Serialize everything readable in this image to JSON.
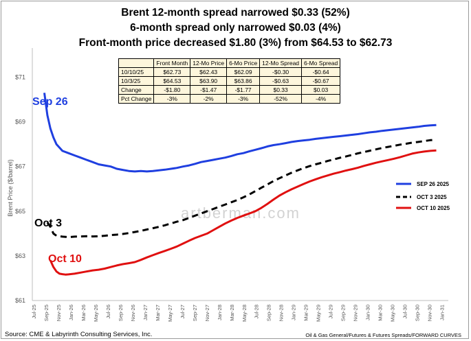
{
  "titles": {
    "line1": "Brent 12-month spread narrowed $0.33 (52%)",
    "line2": "6-month spread only narrowed $0.03 (4%)",
    "line3": "Front-month price decreased $1.80 (3%) from $64.53 to $62.73"
  },
  "table": {
    "headers": [
      "",
      "Front Month",
      "12-Mo Price",
      "6-Mo Price",
      "12-Mo Spread",
      "6-Mo Spread"
    ],
    "rows": [
      [
        "10/10/25",
        "$62.73",
        "$62.43",
        "$62.09",
        "-$0.30",
        "-$0.64"
      ],
      [
        "10/3/25",
        "$64.53",
        "$63.90",
        "$63.86",
        "-$0.63",
        "-$0.67"
      ],
      [
        "Change",
        "-$1.80",
        "-$1.47",
        "-$1.77",
        "$0.33",
        "$0.03"
      ],
      [
        "Pct Change",
        "-3%",
        "-2%",
        "-3%",
        "-52%",
        "-4%"
      ]
    ]
  },
  "footer": {
    "source": "Source: CME & Labyrinth Consulting Services, Inc.",
    "path": "Oil & Gas General/Futures & Futures Spreads/FORWARD CURVES"
  },
  "watermark": "artberman.com",
  "chart_data": {
    "type": "line",
    "ylabel": "Brent Price ($/barrel)",
    "xlabel": "",
    "ylim": [
      61,
      72
    ],
    "yticks": [
      61,
      63,
      65,
      67,
      69,
      71
    ],
    "ytick_labels": [
      "$61",
      "$63",
      "$65",
      "$67",
      "$69",
      "$71"
    ],
    "x_labels": [
      "Jul-25",
      "Sep-25",
      "Nov-25",
      "Jan-26",
      "Mar-26",
      "May-26",
      "Jul-26",
      "Sep-26",
      "Nov-26",
      "Jan-27",
      "Mar-27",
      "May-27",
      "Jul-27",
      "Sep-27",
      "Nov-27",
      "Jan-28",
      "Mar-28",
      "May-28",
      "Jul-28",
      "Sep-28",
      "Nov-28",
      "Jan-29",
      "Mar-29",
      "May-29",
      "Jul-29",
      "Sep-29",
      "Nov-29",
      "Jan-30",
      "Mar-30",
      "May-30",
      "Jul-30",
      "Sep-30",
      "Nov-30",
      "Jan-31"
    ],
    "series": [
      {
        "name": "SEP 26 2025",
        "label": "Sep 26",
        "color": "#1f3fe0",
        "dash": "solid",
        "x": [
          4,
          5,
          6,
          7,
          8,
          9,
          10,
          12,
          14,
          16,
          18,
          20,
          22,
          24,
          26,
          28,
          30,
          32,
          34,
          36,
          38,
          40,
          42,
          44,
          46,
          48,
          50,
          52,
          54,
          56,
          58,
          60,
          62,
          64,
          66,
          68,
          70,
          72,
          74,
          76,
          78,
          80,
          82,
          84,
          86,
          88,
          90,
          92,
          94,
          96,
          98,
          100,
          102,
          104,
          106,
          108,
          110,
          112,
          114,
          116,
          118,
          120,
          122,
          124,
          126,
          128,
          130,
          132,
          134
        ],
        "values": [
          70.3,
          69.3,
          68.7,
          68.3,
          68.0,
          67.85,
          67.7,
          67.6,
          67.5,
          67.4,
          67.3,
          67.2,
          67.1,
          67.05,
          67.0,
          66.9,
          66.85,
          66.8,
          66.78,
          66.8,
          66.78,
          66.8,
          66.83,
          66.86,
          66.9,
          66.94,
          67.0,
          67.05,
          67.12,
          67.2,
          67.25,
          67.3,
          67.35,
          67.4,
          67.47,
          67.55,
          67.6,
          67.68,
          67.75,
          67.82,
          67.9,
          67.96,
          68.0,
          68.05,
          68.1,
          68.14,
          68.17,
          68.2,
          68.24,
          68.27,
          68.3,
          68.33,
          68.36,
          68.39,
          68.42,
          68.45,
          68.49,
          68.53,
          68.56,
          68.6,
          68.63,
          68.66,
          68.69,
          68.72,
          68.75,
          68.78,
          68.82,
          68.84,
          68.86
        ]
      },
      {
        "name": "OCT 3 2025",
        "label": "Oct 3",
        "color": "#000000",
        "dash": "dashed",
        "x": [
          5,
          6,
          7,
          8,
          9,
          10,
          12,
          14,
          16,
          18,
          20,
          22,
          24,
          26,
          28,
          30,
          32,
          34,
          36,
          38,
          40,
          42,
          44,
          46,
          48,
          50,
          52,
          54,
          56,
          58,
          60,
          62,
          64,
          66,
          68,
          70,
          72,
          74,
          76,
          78,
          80,
          82,
          84,
          86,
          88,
          90,
          92,
          94,
          96,
          98,
          100,
          102,
          104,
          106,
          108,
          110,
          112,
          114,
          116,
          118,
          120,
          122,
          124,
          126,
          128,
          130,
          132,
          134
        ],
        "values": [
          64.5,
          64.3,
          64.0,
          63.9,
          63.88,
          63.86,
          63.84,
          63.86,
          63.87,
          63.88,
          63.87,
          63.88,
          63.9,
          63.93,
          63.95,
          63.98,
          64.02,
          64.07,
          64.12,
          64.18,
          64.24,
          64.3,
          64.37,
          64.45,
          64.53,
          64.6,
          64.7,
          64.8,
          64.9,
          65.0,
          65.1,
          65.2,
          65.3,
          65.4,
          65.5,
          65.62,
          65.75,
          65.9,
          66.05,
          66.2,
          66.35,
          66.48,
          66.6,
          66.72,
          66.83,
          66.93,
          67.02,
          67.1,
          67.17,
          67.25,
          67.32,
          67.39,
          67.45,
          67.52,
          67.59,
          67.65,
          67.71,
          67.77,
          67.83,
          67.88,
          67.93,
          67.98,
          68.02,
          68.07,
          68.1,
          68.14,
          68.18,
          68.2
        ]
      },
      {
        "name": "OCT 10 2025",
        "label": "Oct 10",
        "color": "#e01010",
        "dash": "solid",
        "x": [
          6,
          7,
          8,
          9,
          10,
          11,
          12,
          14,
          16,
          18,
          20,
          22,
          24,
          26,
          28,
          30,
          32,
          34,
          36,
          38,
          40,
          42,
          44,
          46,
          48,
          50,
          52,
          54,
          56,
          58,
          60,
          62,
          64,
          66,
          68,
          70,
          72,
          74,
          76,
          78,
          80,
          82,
          84,
          86,
          88,
          90,
          92,
          94,
          96,
          98,
          100,
          102,
          104,
          106,
          108,
          110,
          112,
          114,
          116,
          118,
          120,
          122,
          124,
          126,
          128,
          130,
          132,
          134
        ],
        "values": [
          62.8,
          62.5,
          62.3,
          62.2,
          62.18,
          62.16,
          62.17,
          62.2,
          62.25,
          62.3,
          62.35,
          62.38,
          62.43,
          62.5,
          62.57,
          62.63,
          62.67,
          62.72,
          62.82,
          62.93,
          63.03,
          63.13,
          63.22,
          63.32,
          63.42,
          63.55,
          63.68,
          63.8,
          63.9,
          64.0,
          64.15,
          64.3,
          64.45,
          64.58,
          64.7,
          64.8,
          64.9,
          65.0,
          65.15,
          65.33,
          65.52,
          65.7,
          65.85,
          65.98,
          66.1,
          66.22,
          66.33,
          66.43,
          66.52,
          66.6,
          66.68,
          66.75,
          66.82,
          66.88,
          66.95,
          67.03,
          67.1,
          67.17,
          67.23,
          67.29,
          67.35,
          67.42,
          67.5,
          67.58,
          67.63,
          67.67,
          67.7,
          67.72
        ]
      }
    ],
    "legend_position": "right"
  }
}
